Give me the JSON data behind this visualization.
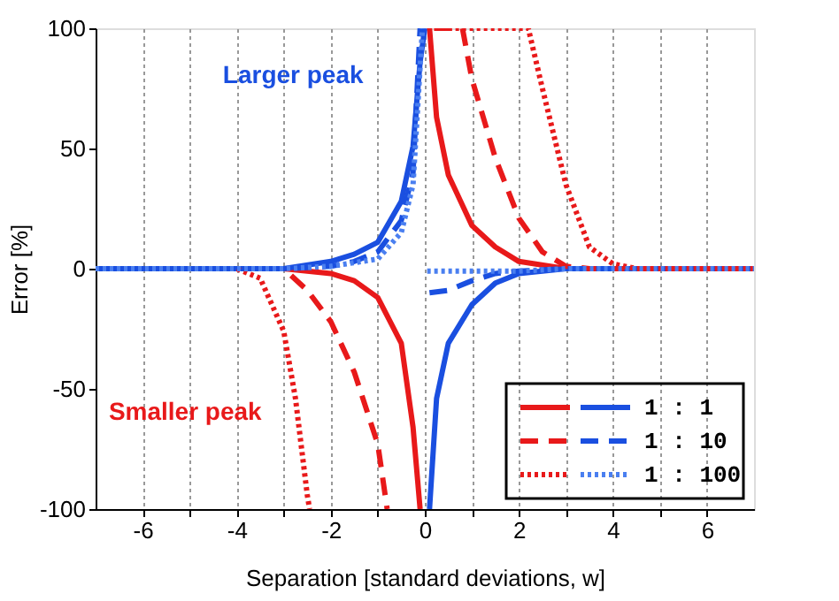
{
  "chart_data": {
    "type": "line",
    "xlabel": "Separation [standard deviations, w]",
    "ylabel": "Error [%]",
    "xlim": [
      -7,
      7
    ],
    "ylim": [
      -100,
      100
    ],
    "xticks": [
      -6,
      {
        "value": -5,
        "label": null
      },
      -4,
      {
        "value": -3,
        "label": null
      },
      -2,
      {
        "value": -1,
        "label": null
      },
      0,
      {
        "value": 1,
        "label": null
      },
      2,
      {
        "value": 3,
        "label": null
      },
      4,
      {
        "value": 5,
        "label": null
      },
      6
    ],
    "yticks": [
      -100,
      -50,
      0,
      50,
      100
    ],
    "grid": "x",
    "legend": "bottom right",
    "annotations": [
      "Larger peak",
      "Smaller peak"
    ],
    "series": [
      {
        "color": "#e8191a",
        "line_style": "solid",
        "x": [
          -7,
          -3,
          -2,
          -1.5,
          -1,
          -0.5,
          -0.25,
          -0.1,
          0,
          0.1,
          0.25,
          0.5,
          1,
          1.5,
          2,
          3,
          7
        ],
        "values": [
          0,
          0,
          -2,
          -5,
          -12,
          -31,
          -66,
          -100,
          null,
          100,
          63,
          39,
          18,
          9,
          3,
          0,
          0
        ]
      },
      {
        "name": "1 : 1",
        "color": "#1a4fe0",
        "line_style": "solid",
        "x": [
          -7,
          -3,
          -2,
          -1.5,
          -1,
          -0.5,
          -0.25,
          -0.1,
          0,
          0.05,
          0.1,
          0.25,
          0.5,
          1,
          1.5,
          2,
          3,
          7
        ],
        "values": [
          0,
          0,
          3,
          6,
          11,
          28,
          51,
          86,
          100,
          null,
          -100,
          -54,
          -31,
          -15,
          -6,
          -2,
          0,
          0
        ]
      },
      {
        "color": "#e8191a",
        "line_style": "dashed",
        "x": [
          -7,
          -3,
          -2.5,
          -2,
          -1.5,
          -1,
          -0.8,
          0,
          0.2,
          0.8,
          1,
          1.5,
          2,
          2.5,
          3,
          3.5,
          7
        ],
        "values": [
          0,
          0,
          -9,
          -22,
          -43,
          -73,
          -100,
          null,
          100,
          100,
          79,
          46,
          21,
          7,
          1,
          0,
          0
        ]
      },
      {
        "name": "1 : 10",
        "color": "#1a4fe0",
        "line_style": "dashed",
        "x": [
          -7,
          -3,
          -2,
          -1.5,
          -1,
          -0.5,
          -0.25,
          -0.1,
          0,
          0.1,
          0.5,
          1,
          1.5,
          2,
          3,
          7
        ],
        "values": [
          0,
          0,
          1,
          3,
          7,
          20,
          40,
          100,
          null,
          -10,
          -9,
          -5,
          -2,
          -1,
          0,
          0
        ]
      },
      {
        "color": "#e8191a",
        "line_style": "dotted",
        "x": [
          -7,
          -4,
          -3.5,
          -3,
          -2.75,
          -2.5,
          -2.45,
          0,
          0.05,
          2.2,
          2.5,
          3,
          3.5,
          4,
          4.5,
          7
        ],
        "values": [
          0,
          0,
          -4,
          -26,
          -54,
          -94,
          -100,
          null,
          100,
          100,
          75,
          35,
          9,
          2,
          0,
          0
        ]
      },
      {
        "name": "1 : 100",
        "color": "#4a7ff0",
        "line_style": "dotted",
        "x": [
          -7,
          -3,
          -2,
          -1,
          -0.5,
          -0.25,
          -0.05,
          0,
          0.05,
          2,
          3,
          7
        ],
        "values": [
          0,
          0,
          1,
          4,
          15,
          35,
          100,
          null,
          -1,
          -1,
          0,
          0
        ]
      }
    ]
  }
}
